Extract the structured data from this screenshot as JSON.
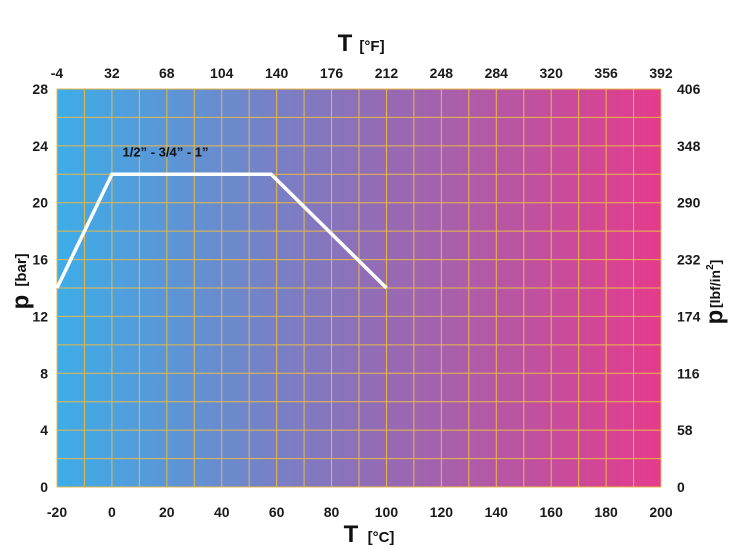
{
  "chart_data": {
    "type": "line",
    "x_bottom": {
      "symbol": "T",
      "unit": "[°C]",
      "ticks": [
        "-20",
        "0",
        "20",
        "40",
        "60",
        "80",
        "100",
        "120",
        "140",
        "160",
        "180",
        "200"
      ],
      "range": [
        -20,
        200
      ]
    },
    "x_top": {
      "symbol": "T",
      "unit": "[°F]",
      "ticks": [
        "-4",
        "32",
        "68",
        "104",
        "140",
        "176",
        "212",
        "248",
        "284",
        "320",
        "356",
        "392"
      ]
    },
    "y_left": {
      "symbol": "p",
      "unit": "[bar]",
      "ticks": [
        "0",
        "4",
        "8",
        "12",
        "16",
        "20",
        "24",
        "28"
      ],
      "range": [
        0,
        28
      ]
    },
    "y_right": {
      "symbol": "p",
      "unit_base": "[lbf/in",
      "unit_sup": "2",
      "unit_end": "]",
      "ticks": [
        "0",
        "58",
        "116",
        "174",
        "232",
        "290",
        "348",
        "406"
      ]
    },
    "series": [
      {
        "name": "1/2” - 3/4” - 1”",
        "x": [
          -20,
          0,
          58,
          100
        ],
        "y": [
          14,
          22,
          22,
          14
        ]
      }
    ],
    "grid": true,
    "colors": {
      "gradient_start": "#3dade8",
      "gradient_mid": "#8e6fb8",
      "gradient_end": "#e53b8c",
      "grid": "#e8b84a",
      "line": "#ffffff"
    }
  }
}
